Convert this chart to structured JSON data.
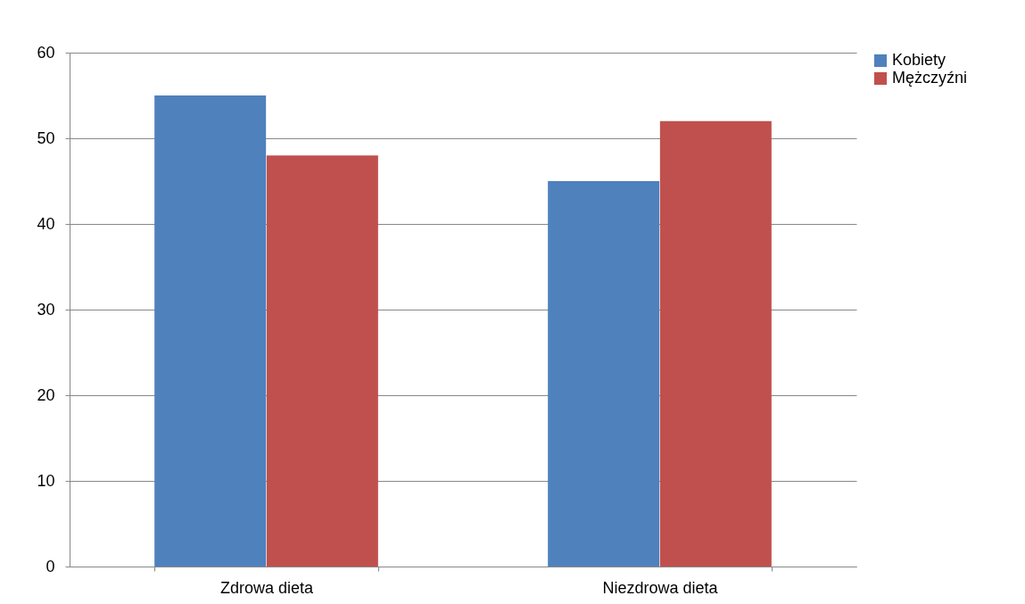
{
  "chart_data": {
    "type": "bar",
    "categories": [
      "Zdrowa dieta",
      "Niezdrowa dieta"
    ],
    "series": [
      {
        "name": "Kobiety",
        "color": "#4f81bd",
        "values": [
          55,
          45
        ]
      },
      {
        "name": "Mężczyźni",
        "color": "#c0504d",
        "values": [
          48,
          52
        ]
      }
    ],
    "ylim": [
      0,
      60
    ],
    "yticks": [
      0,
      10,
      20,
      30,
      40,
      50,
      60
    ],
    "grid": "y",
    "legend": "right"
  }
}
